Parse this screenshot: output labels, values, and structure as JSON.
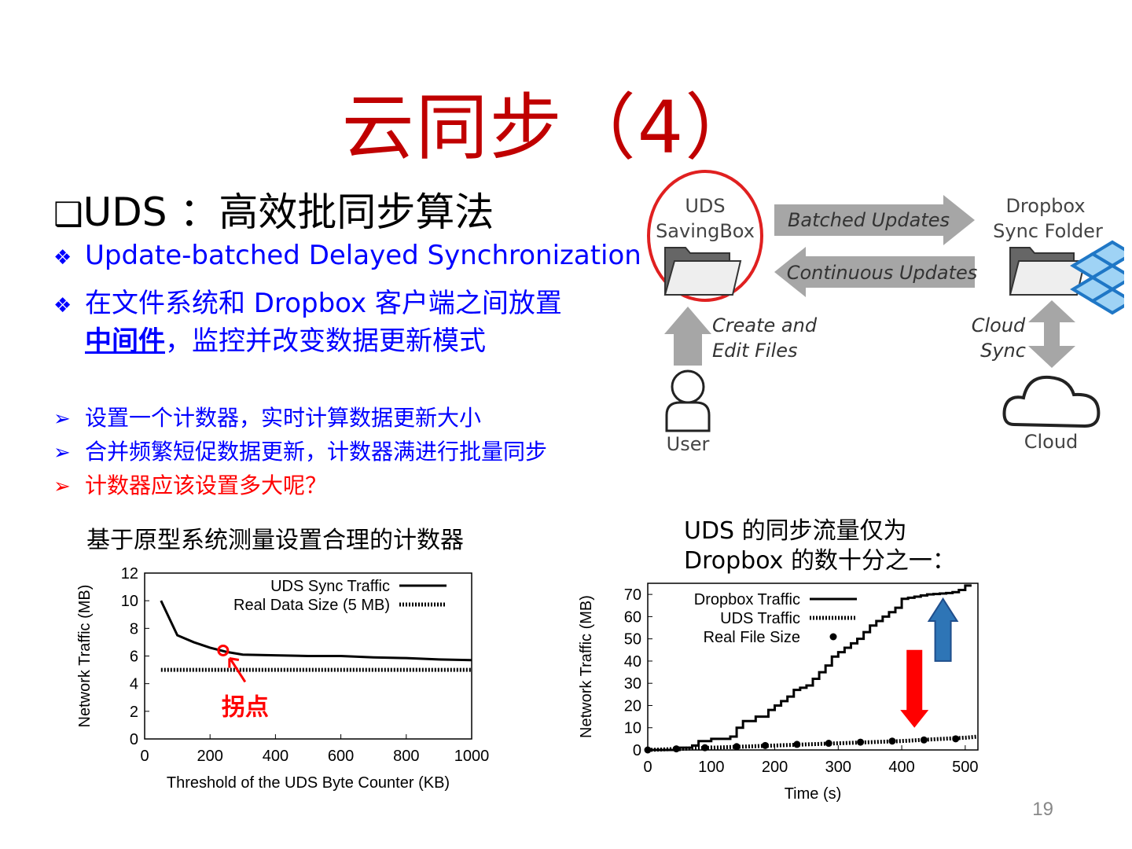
{
  "title": "云同步（4）",
  "heading": {
    "checkbox": "❑",
    "text": "UDS ：高效批同步算法"
  },
  "bullets": [
    {
      "line1": "Update-batched Delayed Synchronization"
    },
    {
      "line1": "在文件系统和 Dropbox 客户端之间放置",
      "line2_link": "中间件",
      "line2_rest": "，监控并改变数据更新模式"
    }
  ],
  "sub_bullets": [
    {
      "text": "设置一个计数器，实时计算数据更新大小",
      "color": "#0000ff"
    },
    {
      "text": "合并频繁短促数据更新，计数器满进行批量同步",
      "color": "#0000ff"
    },
    {
      "text": "计数器应该设置多大呢？",
      "color": "#ff0000"
    }
  ],
  "diagram": {
    "uds_label1": "UDS",
    "uds_label2": "SavingBox",
    "dropbox_label1": "Dropbox",
    "dropbox_label2": "Sync Folder",
    "batched": "Batched Updates",
    "continuous": "Continuous Updates",
    "create1": "Create and",
    "create2": "Edit Files",
    "cloud_sync1": "Cloud",
    "cloud_sync2": "Sync",
    "user": "User",
    "cloud": "Cloud"
  },
  "caption_left": "基于原型系统测量设置合理的计数器",
  "caption_right1": "UDS 的同步流量仅为",
  "caption_right2": "Dropbox 的数十分之一：",
  "page_number": "19",
  "chart_data": [
    {
      "type": "line",
      "xlabel": "Threshold of the UDS Byte Counter (KB)",
      "ylabel": "Network Traffic (MB)",
      "xlim": [
        0,
        1000
      ],
      "ylim": [
        0,
        12
      ],
      "xticks": [
        "0",
        "200",
        "400",
        "600",
        "800",
        "1000"
      ],
      "yticks": [
        "0",
        "2",
        "4",
        "6",
        "8",
        "10",
        "12"
      ],
      "legend_placement": "top-right",
      "series": [
        {
          "name": "UDS Sync Traffic",
          "style": "solid",
          "x": [
            50,
            100,
            150,
            200,
            250,
            300,
            400,
            500,
            600,
            700,
            800,
            900,
            1000
          ],
          "y": [
            10,
            7.5,
            7,
            6.6,
            6.3,
            6.1,
            6.05,
            6.0,
            6.0,
            5.9,
            5.85,
            5.75,
            5.7
          ]
        },
        {
          "name": "Real Data Size (5 MB)",
          "style": "dotted",
          "x": [
            50,
            1000
          ],
          "y": [
            5,
            5
          ]
        }
      ],
      "annotation": {
        "text": "拐点",
        "x": 240,
        "y": 6.4,
        "color": "#ff0000"
      }
    },
    {
      "type": "line",
      "xlabel": "Time (s)",
      "ylabel": "Network Traffic (MB)",
      "xlim": [
        0,
        520
      ],
      "ylim": [
        0,
        75
      ],
      "xticks": [
        "0",
        "100",
        "200",
        "300",
        "400",
        "500"
      ],
      "yticks": [
        "0",
        "10",
        "20",
        "30",
        "40",
        "50",
        "60",
        "70"
      ],
      "legend_placement": "top-left",
      "series": [
        {
          "name": "Dropbox Traffic",
          "style": "solid",
          "x": [
            0,
            50,
            70,
            80,
            100,
            130,
            140,
            150,
            170,
            190,
            200,
            210,
            220,
            230,
            240,
            250,
            260,
            270,
            280,
            290,
            300,
            310,
            320,
            330,
            340,
            350,
            360,
            370,
            380,
            390,
            400,
            410,
            420,
            430,
            440,
            450,
            460,
            470,
            480,
            490,
            500,
            510
          ],
          "y": [
            0,
            1,
            2,
            4,
            5,
            6,
            10,
            13,
            15,
            18,
            20,
            22,
            24,
            27,
            28,
            29,
            32,
            35,
            38,
            42,
            44,
            46,
            48,
            50,
            53,
            56,
            58,
            60,
            62,
            64,
            68,
            68.5,
            69,
            69.5,
            70,
            70.2,
            70.4,
            70.6,
            71,
            72,
            74,
            74
          ]
        },
        {
          "name": "UDS Traffic",
          "style": "dotted",
          "x": [
            0,
            50,
            100,
            150,
            200,
            250,
            300,
            350,
            400,
            450,
            500,
            520
          ],
          "y": [
            0,
            0.5,
            1,
            1.5,
            2,
            2.5,
            3,
            3.5,
            4,
            4.8,
            5.5,
            6
          ]
        },
        {
          "name": "Real File Size",
          "style": "points",
          "x": [
            0,
            45,
            90,
            140,
            185,
            235,
            285,
            335,
            385,
            435,
            485
          ],
          "y": [
            0,
            0.5,
            1,
            1.5,
            2,
            2.5,
            3,
            3.5,
            4,
            4.5,
            5
          ]
        }
      ],
      "arrows": [
        {
          "direction": "down",
          "color": "#ff0000",
          "x": 420
        },
        {
          "direction": "up",
          "color": "#2e75b6",
          "x": 465
        }
      ]
    }
  ]
}
